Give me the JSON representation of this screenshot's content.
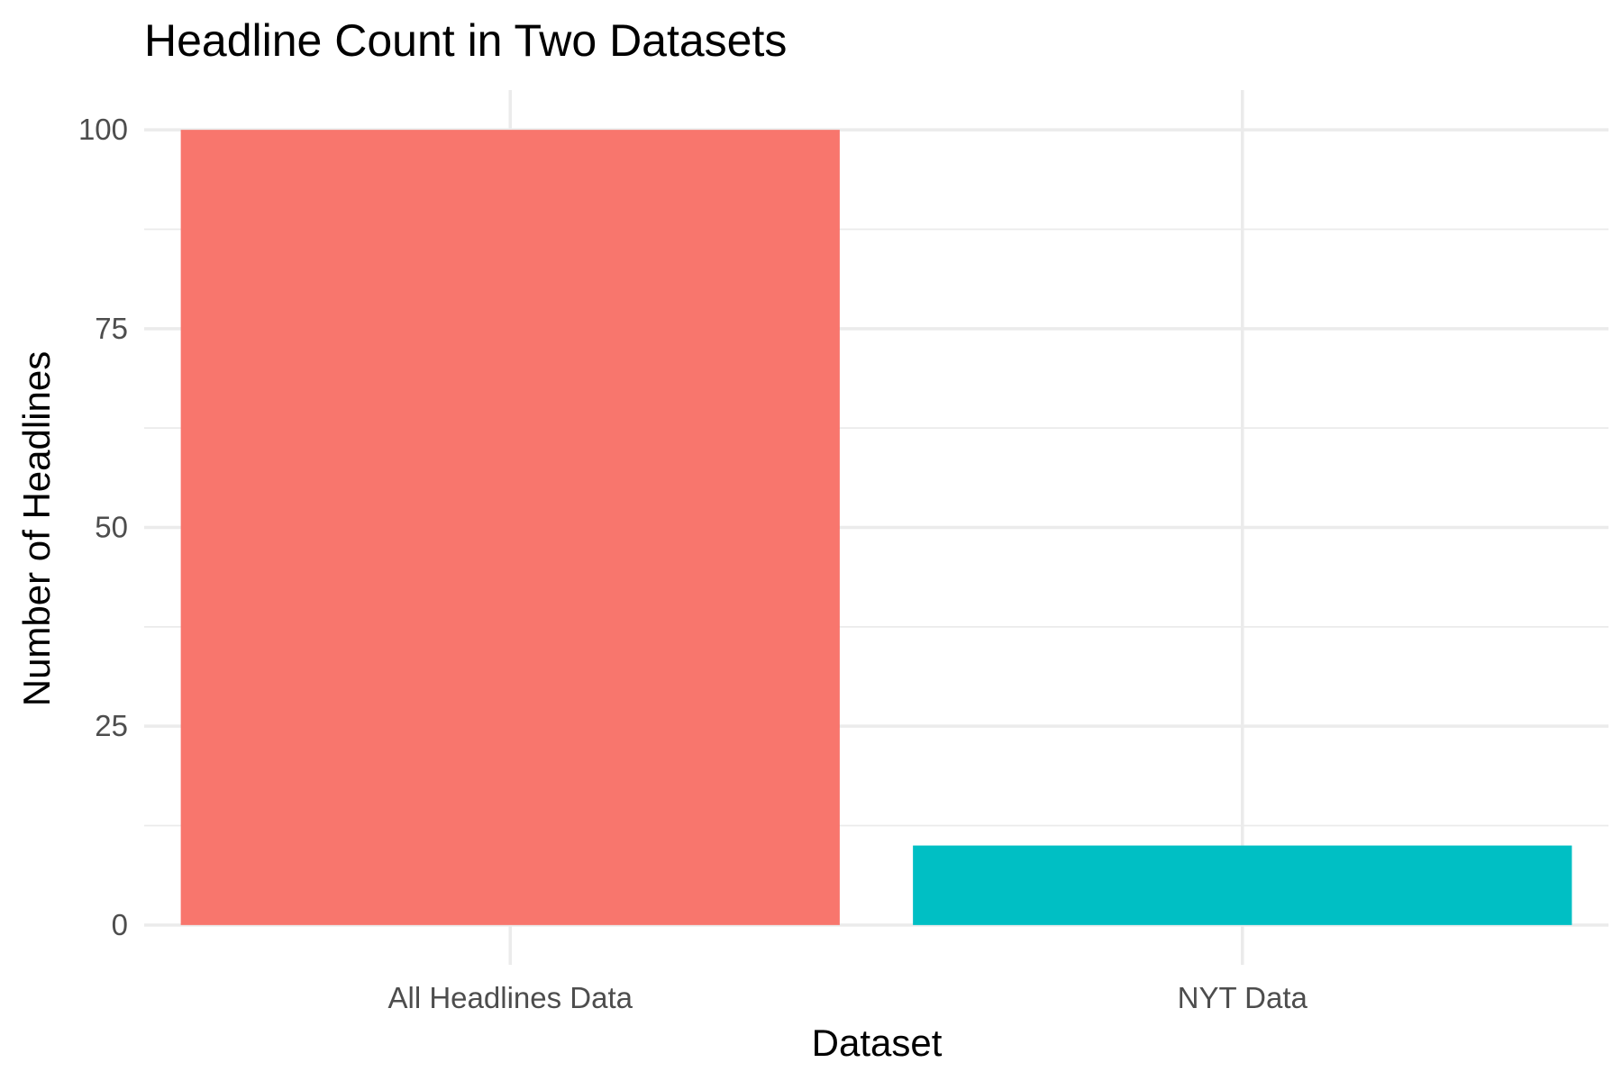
{
  "chart_data": {
    "type": "bar",
    "title": "Headline Count in Two Datasets",
    "xlabel": "Dataset",
    "ylabel": "Number of Headlines",
    "categories": [
      "All Headlines Data",
      "NYT Data"
    ],
    "values": [
      100,
      10
    ],
    "colors": [
      "#F8766D",
      "#00BFC4"
    ],
    "ylim": [
      -5,
      105
    ],
    "y_ticks": [
      0,
      25,
      50,
      75,
      100
    ],
    "y_minor_ticks": [
      12.5,
      37.5,
      62.5,
      87.5
    ],
    "grid": true,
    "legend": "none"
  }
}
